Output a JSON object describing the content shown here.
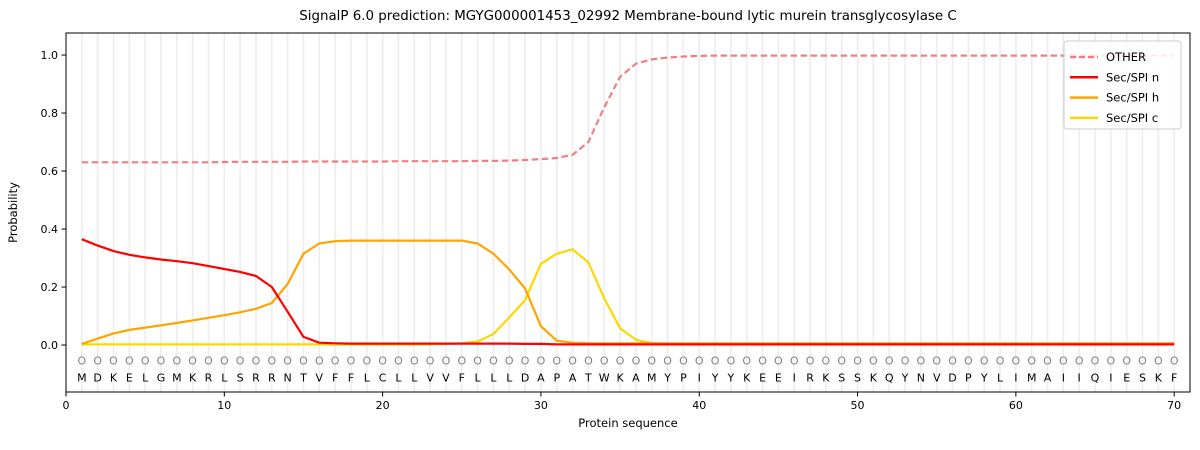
{
  "title": "SignalP 6.0 prediction: MGYG000001453_02992 Membrane-bound lytic murein transglycosylase C",
  "chart_data": {
    "type": "line",
    "title": "SignalP 6.0 prediction: MGYG000001453_02992 Membrane-bound lytic murein transglycosylase C",
    "xlabel": "Protein sequence",
    "ylabel": "Probability",
    "xlim": [
      0,
      71
    ],
    "ylim": [
      -0.162,
      1.076
    ],
    "xticks": [
      0,
      10,
      20,
      30,
      40,
      50,
      60,
      70
    ],
    "yticks": [
      0.0,
      0.2,
      0.4,
      0.6,
      0.8,
      1.0
    ],
    "grid": "vertical line at every residue position",
    "grid_color": "#ededed",
    "background_color": "#ffffff",
    "legend_position": "upper right",
    "legend_border_color": "#cccccc",
    "sequence": "MDKELGMKRLSRRNTVFFLCLLVVFLLLDAPATWKAMYPIYYKEEIRKSSKQYNVDPYLIMAIIQIESKF",
    "marker_row": "OOOOOOOOOOOOOOOOOOOOOOOOOOOOOOOOOOOOOOOOOOOOOOOOOOOOOOOOOOOOOOOOOOOOOO",
    "marker_color": "#808080",
    "x_note": "residue index 1..70",
    "draw_order": [
      "other",
      "sec-spi-c",
      "sec-spi-h",
      "sec-spi-n"
    ],
    "series": [
      {
        "key": "other",
        "name": "OTHER",
        "color": "#f08080",
        "dash": true,
        "values": [
          0.63,
          0.63,
          0.63,
          0.63,
          0.63,
          0.63,
          0.63,
          0.63,
          0.63,
          0.631,
          0.632,
          0.632,
          0.632,
          0.632,
          0.633,
          0.633,
          0.633,
          0.633,
          0.633,
          0.633,
          0.634,
          0.634,
          0.634,
          0.634,
          0.634,
          0.635,
          0.635,
          0.636,
          0.638,
          0.641,
          0.645,
          0.656,
          0.7,
          0.82,
          0.925,
          0.97,
          0.985,
          0.991,
          0.995,
          0.997,
          0.998,
          0.998,
          0.998,
          0.998,
          0.998,
          0.998,
          0.998,
          0.998,
          0.998,
          0.998,
          0.998,
          0.998,
          0.998,
          0.998,
          0.998,
          0.998,
          0.998,
          0.998,
          0.998,
          0.998,
          0.998,
          0.998,
          0.998,
          0.998,
          0.998,
          0.998,
          0.998,
          0.998,
          0.998,
          0.998
        ]
      },
      {
        "key": "sec-spi-n",
        "name": "Sec/SPI n",
        "color": "#ff0000",
        "dash": false,
        "values": [
          0.365,
          0.343,
          0.324,
          0.311,
          0.302,
          0.295,
          0.289,
          0.282,
          0.272,
          0.262,
          0.252,
          0.238,
          0.2,
          0.115,
          0.028,
          0.008,
          0.006,
          0.005,
          0.005,
          0.005,
          0.005,
          0.005,
          0.005,
          0.005,
          0.005,
          0.005,
          0.005,
          0.005,
          0.004,
          0.004,
          0.002,
          0.002,
          0.002,
          0.002,
          0.002,
          0.002,
          0.002,
          0.002,
          0.002,
          0.002,
          0.002,
          0.002,
          0.002,
          0.002,
          0.002,
          0.002,
          0.002,
          0.002,
          0.002,
          0.002,
          0.002,
          0.002,
          0.002,
          0.002,
          0.002,
          0.002,
          0.002,
          0.002,
          0.002,
          0.002,
          0.002,
          0.002,
          0.002,
          0.002,
          0.002,
          0.002,
          0.002,
          0.002,
          0.002,
          0.002
        ]
      },
      {
        "key": "sec-spi-h",
        "name": "Sec/SPI h",
        "color": "#ffa500",
        "dash": false,
        "values": [
          0.004,
          0.022,
          0.04,
          0.052,
          0.06,
          0.068,
          0.076,
          0.085,
          0.094,
          0.103,
          0.113,
          0.125,
          0.145,
          0.21,
          0.315,
          0.35,
          0.358,
          0.36,
          0.36,
          0.36,
          0.36,
          0.36,
          0.36,
          0.36,
          0.36,
          0.35,
          0.315,
          0.26,
          0.195,
          0.065,
          0.015,
          0.008,
          0.006,
          0.006,
          0.006,
          0.006,
          0.006,
          0.006,
          0.006,
          0.006,
          0.006,
          0.006,
          0.006,
          0.006,
          0.006,
          0.006,
          0.006,
          0.006,
          0.006,
          0.006,
          0.006,
          0.006,
          0.006,
          0.006,
          0.006,
          0.006,
          0.006,
          0.006,
          0.006,
          0.006,
          0.006,
          0.006,
          0.006,
          0.006,
          0.006,
          0.006,
          0.006,
          0.006,
          0.006,
          0.006
        ]
      },
      {
        "key": "sec-spi-c",
        "name": "Sec/SPI c",
        "color": "#ffd700",
        "dash": false,
        "values": [
          0.002,
          0.002,
          0.002,
          0.002,
          0.002,
          0.002,
          0.002,
          0.002,
          0.002,
          0.002,
          0.002,
          0.002,
          0.002,
          0.002,
          0.002,
          0.002,
          0.002,
          0.002,
          0.002,
          0.002,
          0.002,
          0.002,
          0.003,
          0.004,
          0.006,
          0.012,
          0.038,
          0.095,
          0.155,
          0.28,
          0.315,
          0.33,
          0.285,
          0.16,
          0.058,
          0.018,
          0.007,
          0.005,
          0.003,
          0.003,
          0.003,
          0.003,
          0.003,
          0.003,
          0.003,
          0.003,
          0.003,
          0.003,
          0.003,
          0.003,
          0.003,
          0.003,
          0.003,
          0.003,
          0.003,
          0.003,
          0.003,
          0.003,
          0.003,
          0.003,
          0.003,
          0.003,
          0.003,
          0.003,
          0.003,
          0.003,
          0.003,
          0.003,
          0.003,
          0.003
        ]
      }
    ]
  }
}
